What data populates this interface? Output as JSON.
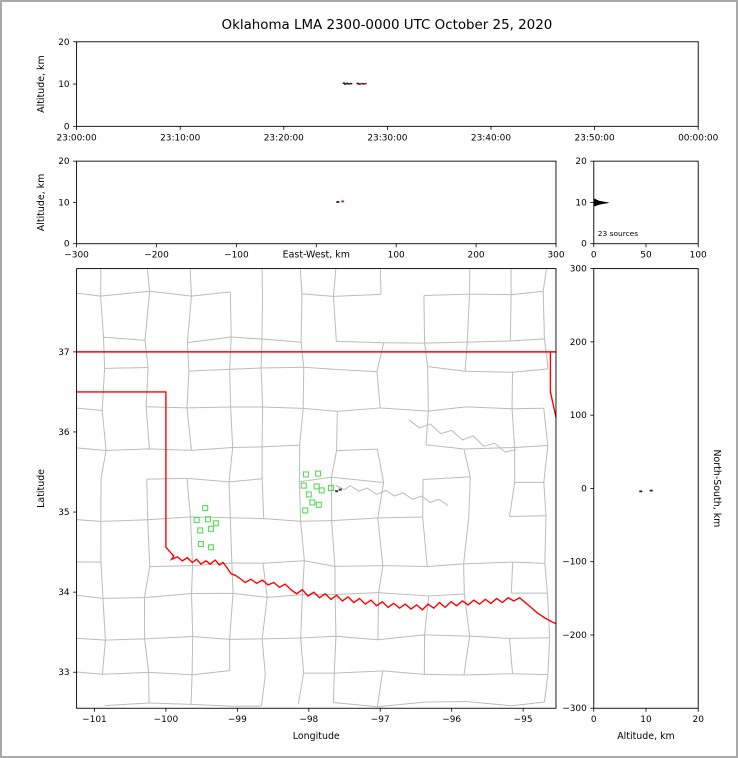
{
  "title": "Oklahoma LMA 2300-0000 UTC October 25, 2020",
  "colors": {
    "state_border": "#ff0000",
    "county": "#bbbbbb",
    "source_marker": "#55dd55",
    "dark_point": "#333333",
    "axis": "#000000"
  },
  "chart_data": {
    "type": "scatter",
    "title": "Oklahoma LMA 2300-0000 UTC October 25, 2020",
    "panels": {
      "time_height": {
        "ylabel": "Altitude, km",
        "ylim": [
          0,
          20
        ],
        "yticks": [
          0,
          10,
          20
        ],
        "xlim": [
          0,
          3600
        ],
        "xticks": [
          {
            "v": 0,
            "label": "23:00:00"
          },
          {
            "v": 600,
            "label": "23:10:00"
          },
          {
            "v": 1200,
            "label": "23:20:00"
          },
          {
            "v": 1800,
            "label": "23:30:00"
          },
          {
            "v": 2400,
            "label": "23:40:00"
          },
          {
            "v": 3000,
            "label": "23:50:00"
          },
          {
            "v": 3600,
            "label": "00:00:00"
          }
        ],
        "points": [
          [
            1548,
            10.2,
            "#222222"
          ],
          [
            1556,
            10.0,
            "#222222"
          ],
          [
            1566,
            10.15,
            "#222222"
          ],
          [
            1576,
            10.05,
            "#222222"
          ],
          [
            1590,
            10.1,
            "#222222"
          ],
          [
            1628,
            10.15,
            "#222222"
          ],
          [
            1638,
            10.0,
            "#222222"
          ],
          [
            1650,
            10.1,
            "#bb2222"
          ],
          [
            1662,
            10.05,
            "#222222"
          ],
          [
            1674,
            10.1,
            "#bb2222"
          ]
        ]
      },
      "ew_height": {
        "xlabel": "East-West, km",
        "xlim": [
          -300,
          300
        ],
        "xticks": [
          -300,
          -200,
          -100,
          0,
          100,
          200,
          300
        ],
        "ylabel": "Altitude, km",
        "ylim": [
          0,
          20
        ],
        "yticks": [
          0,
          10,
          20
        ],
        "points": [
          [
            27,
            10.1,
            "#222222"
          ],
          [
            33,
            10.25,
            "#cc2222"
          ]
        ]
      },
      "alt_histogram": {
        "xlim": [
          0,
          100
        ],
        "xticks": [
          0,
          50,
          100
        ],
        "ylim": [
          0,
          20
        ],
        "yticks": [
          0,
          10,
          20
        ],
        "annotation": "23 sources",
        "profile": [
          [
            0,
            9.0
          ],
          [
            6,
            9.5
          ],
          [
            15,
            9.9
          ],
          [
            13,
            10.05
          ],
          [
            5,
            10.4
          ],
          [
            0,
            11.0
          ]
        ]
      },
      "map": {
        "xlabel": "Longitude",
        "ylabel": "Latitude",
        "xlim": [
          -101.25,
          -94.54
        ],
        "ylim": [
          32.55,
          38.04
        ],
        "xticks": [
          -101,
          -100,
          -99,
          -98,
          -97,
          -96,
          -95
        ],
        "yticks": [
          33,
          34,
          35,
          36,
          37
        ],
        "state_border": [
          [
            [
              -101.25,
              37.0
            ],
            [
              -94.54,
              37.0
            ]
          ],
          [
            [
              -94.618,
              37.0
            ],
            [
              -94.618,
              36.5
            ],
            [
              -94.5,
              36.02
            ]
          ],
          [
            [
              -101.25,
              36.5
            ],
            [
              -100.0,
              36.5
            ],
            [
              -100.0,
              34.563
            ],
            [
              -99.95,
              34.51
            ],
            [
              -99.89,
              34.45
            ],
            [
              -99.92,
              34.41
            ],
            [
              -99.84,
              34.44
            ],
            [
              -99.77,
              34.39
            ],
            [
              -99.7,
              34.43
            ],
            [
              -99.63,
              34.37
            ],
            [
              -99.57,
              34.41
            ],
            [
              -99.51,
              34.35
            ],
            [
              -99.44,
              34.39
            ],
            [
              -99.38,
              34.35
            ],
            [
              -99.31,
              34.4
            ],
            [
              -99.25,
              34.34
            ],
            [
              -99.2,
              34.37
            ],
            [
              -99.14,
              34.3
            ],
            [
              -99.09,
              34.23
            ],
            [
              -99.03,
              34.21
            ],
            [
              -98.96,
              34.17
            ],
            [
              -98.89,
              34.12
            ],
            [
              -98.81,
              34.16
            ],
            [
              -98.73,
              34.11
            ],
            [
              -98.65,
              34.15
            ],
            [
              -98.57,
              34.09
            ],
            [
              -98.49,
              34.12
            ],
            [
              -98.41,
              34.06
            ],
            [
              -98.33,
              34.1
            ],
            [
              -98.25,
              34.03
            ],
            [
              -98.17,
              33.98
            ],
            [
              -98.09,
              34.03
            ],
            [
              -98.01,
              33.95
            ],
            [
              -97.93,
              34.0
            ],
            [
              -97.85,
              33.93
            ],
            [
              -97.77,
              33.98
            ],
            [
              -97.69,
              33.91
            ],
            [
              -97.61,
              33.96
            ],
            [
              -97.53,
              33.89
            ],
            [
              -97.45,
              33.94
            ],
            [
              -97.37,
              33.87
            ],
            [
              -97.29,
              33.92
            ],
            [
              -97.21,
              33.85
            ],
            [
              -97.13,
              33.9
            ],
            [
              -97.05,
              33.83
            ],
            [
              -96.97,
              33.88
            ],
            [
              -96.89,
              33.81
            ],
            [
              -96.81,
              33.86
            ],
            [
              -96.73,
              33.8
            ],
            [
              -96.65,
              33.85
            ],
            [
              -96.57,
              33.79
            ],
            [
              -96.49,
              33.84
            ],
            [
              -96.41,
              33.78
            ],
            [
              -96.33,
              33.85
            ],
            [
              -96.25,
              33.8
            ],
            [
              -96.17,
              33.87
            ],
            [
              -96.09,
              33.81
            ],
            [
              -96.01,
              33.88
            ],
            [
              -95.93,
              33.83
            ],
            [
              -95.85,
              33.89
            ],
            [
              -95.77,
              33.84
            ],
            [
              -95.69,
              33.9
            ],
            [
              -95.61,
              33.85
            ],
            [
              -95.53,
              33.91
            ],
            [
              -95.45,
              33.86
            ],
            [
              -95.37,
              33.92
            ],
            [
              -95.29,
              33.87
            ],
            [
              -95.21,
              33.93
            ],
            [
              -95.13,
              33.89
            ],
            [
              -95.05,
              33.93
            ],
            [
              -94.97,
              33.87
            ],
            [
              -94.89,
              33.81
            ],
            [
              -94.8,
              33.74
            ],
            [
              -94.7,
              33.68
            ],
            [
              -94.6,
              33.63
            ],
            [
              -94.52,
              33.6
            ]
          ]
        ],
        "rivers": [
          [
            [
              -97.62,
              35.33
            ],
            [
              -97.5,
              35.28
            ],
            [
              -97.42,
              35.33
            ],
            [
              -97.3,
              35.26
            ],
            [
              -97.18,
              35.3
            ],
            [
              -97.05,
              35.22
            ],
            [
              -96.92,
              35.27
            ],
            [
              -96.8,
              35.2
            ],
            [
              -96.68,
              35.24
            ],
            [
              -96.55,
              35.16
            ],
            [
              -96.42,
              35.2
            ],
            [
              -96.3,
              35.12
            ],
            [
              -96.18,
              35.16
            ],
            [
              -96.05,
              35.08
            ]
          ],
          [
            [
              -96.6,
              36.15
            ],
            [
              -96.45,
              36.05
            ],
            [
              -96.3,
              36.1
            ],
            [
              -96.15,
              35.98
            ],
            [
              -96.0,
              36.02
            ],
            [
              -95.85,
              35.9
            ],
            [
              -95.7,
              35.95
            ],
            [
              -95.55,
              35.82
            ],
            [
              -95.4,
              35.86
            ],
            [
              -95.25,
              35.75
            ],
            [
              -95.1,
              35.78
            ]
          ]
        ],
        "sources": [
          [
            -98.04,
            35.47
          ],
          [
            -97.87,
            35.48
          ],
          [
            -98.07,
            35.33
          ],
          [
            -97.89,
            35.32
          ],
          [
            -98.0,
            35.22
          ],
          [
            -97.82,
            35.27
          ],
          [
            -97.69,
            35.3
          ],
          [
            -97.95,
            35.12
          ],
          [
            -98.05,
            35.02
          ],
          [
            -97.86,
            35.09
          ],
          [
            -99.45,
            35.05
          ],
          [
            -99.57,
            34.9
          ],
          [
            -99.41,
            34.91
          ],
          [
            -99.52,
            34.77
          ],
          [
            -99.37,
            34.79
          ],
          [
            -99.3,
            34.86
          ],
          [
            -99.51,
            34.6
          ],
          [
            -99.37,
            34.56
          ]
        ],
        "dark_points": [
          [
            -97.61,
            35.26
          ],
          [
            -97.56,
            35.28
          ]
        ]
      },
      "ns_height": {
        "xlabel": "Altitude, km",
        "xlim": [
          0,
          20
        ],
        "xticks": [
          0,
          10,
          20
        ],
        "ylabel": "North-South, km",
        "ylim": [
          -300,
          300
        ],
        "yticks": [
          -300,
          -200,
          -100,
          0,
          100,
          200,
          300
        ],
        "points": [
          [
            9,
            -4,
            "#222222"
          ],
          [
            11,
            -3,
            "#222222"
          ]
        ]
      }
    }
  }
}
